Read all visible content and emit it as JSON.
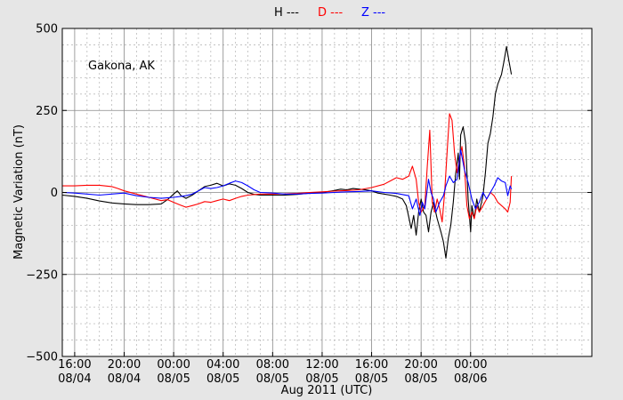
{
  "chart_data": {
    "type": "line",
    "legend": [
      {
        "name": "H ---",
        "color": "#000000"
      },
      {
        "name": "D ---",
        "color": "#ff0000"
      },
      {
        "name": "Z ---",
        "color": "#0000ff"
      }
    ],
    "legend_placement": "top-center",
    "annotation": "Gakona, AK",
    "xlabel": "Aug 2011 (UTC)",
    "ylabel": "Magnetic Variation (nT)",
    "x_unit": "hours since 2011-08-04 00:00 UTC",
    "xlim": [
      15,
      57.8
    ],
    "ylim": [
      -500,
      500
    ],
    "grid": true,
    "x_ticks": [
      {
        "x": 16,
        "line1": "16:00",
        "line2": "08/04"
      },
      {
        "x": 20,
        "line1": "20:00",
        "line2": "08/04"
      },
      {
        "x": 24,
        "line1": "00:00",
        "line2": "08/05"
      },
      {
        "x": 28,
        "line1": "04:00",
        "line2": "08/05"
      },
      {
        "x": 32,
        "line1": "08:00",
        "line2": "08/05"
      },
      {
        "x": 36,
        "line1": "12:00",
        "line2": "08/05"
      },
      {
        "x": 40,
        "line1": "16:00",
        "line2": "08/05"
      },
      {
        "x": 44,
        "line1": "20:00",
        "line2": "08/05"
      },
      {
        "x": 48,
        "line1": "00:00",
        "line2": "08/06"
      }
    ],
    "y_ticks": [
      {
        "y": 500,
        "label": "500"
      },
      {
        "y": 250,
        "label": "250"
      },
      {
        "y": 0,
        "label": "0"
      },
      {
        "y": -250,
        "label": "−250"
      },
      {
        "y": -500,
        "label": "−500"
      }
    ],
    "series": [
      {
        "name": "H",
        "color": "#000000",
        "points": [
          [
            15.0,
            -8
          ],
          [
            16.0,
            -12
          ],
          [
            17.0,
            -18
          ],
          [
            18.0,
            -26
          ],
          [
            19.0,
            -32
          ],
          [
            20.0,
            -35
          ],
          [
            21.0,
            -37
          ],
          [
            22.0,
            -37
          ],
          [
            23.0,
            -35
          ],
          [
            23.5,
            -22
          ],
          [
            24.0,
            -5
          ],
          [
            24.3,
            5
          ],
          [
            24.6,
            -10
          ],
          [
            25.0,
            -18
          ],
          [
            25.5,
            -8
          ],
          [
            26.0,
            5
          ],
          [
            26.5,
            18
          ],
          [
            27.0,
            22
          ],
          [
            27.5,
            28
          ],
          [
            28.0,
            20
          ],
          [
            28.5,
            26
          ],
          [
            29.0,
            22
          ],
          [
            29.5,
            12
          ],
          [
            30.0,
            0
          ],
          [
            30.5,
            -6
          ],
          [
            31.0,
            -8
          ],
          [
            32.0,
            -8
          ],
          [
            33.0,
            -8
          ],
          [
            34.0,
            -6
          ],
          [
            35.0,
            -2
          ],
          [
            36.0,
            0
          ],
          [
            36.5,
            3
          ],
          [
            37.0,
            6
          ],
          [
            37.5,
            10
          ],
          [
            38.0,
            8
          ],
          [
            38.5,
            12
          ],
          [
            39.0,
            10
          ],
          [
            39.5,
            8
          ],
          [
            40.0,
            5
          ],
          [
            40.5,
            -2
          ],
          [
            41.0,
            -5
          ],
          [
            41.5,
            -8
          ],
          [
            42.0,
            -12
          ],
          [
            42.5,
            -20
          ],
          [
            42.8,
            -40
          ],
          [
            43.0,
            -75
          ],
          [
            43.2,
            -110
          ],
          [
            43.4,
            -70
          ],
          [
            43.6,
            -130
          ],
          [
            43.8,
            -60
          ],
          [
            44.0,
            -20
          ],
          [
            44.2,
            -60
          ],
          [
            44.4,
            -70
          ],
          [
            44.6,
            -120
          ],
          [
            44.8,
            -60
          ],
          [
            45.0,
            -30
          ],
          [
            45.3,
            -80
          ],
          [
            45.6,
            -120
          ],
          [
            45.8,
            -150
          ],
          [
            46.0,
            -200
          ],
          [
            46.2,
            -140
          ],
          [
            46.4,
            -100
          ],
          [
            46.6,
            -30
          ],
          [
            46.8,
            60
          ],
          [
            47.0,
            120
          ],
          [
            47.1,
            40
          ],
          [
            47.2,
            175
          ],
          [
            47.4,
            200
          ],
          [
            47.6,
            150
          ],
          [
            47.8,
            -20
          ],
          [
            48.0,
            -120
          ],
          [
            48.1,
            -40
          ],
          [
            48.3,
            -80
          ],
          [
            48.5,
            -20
          ],
          [
            48.7,
            -60
          ],
          [
            49.0,
            -10
          ],
          [
            49.2,
            60
          ],
          [
            49.4,
            150
          ],
          [
            49.6,
            180
          ],
          [
            49.8,
            230
          ],
          [
            50.0,
            300
          ],
          [
            50.2,
            330
          ],
          [
            50.5,
            360
          ],
          [
            50.7,
            400
          ],
          [
            50.9,
            445
          ],
          [
            51.1,
            400
          ],
          [
            51.3,
            360
          ]
        ]
      },
      {
        "name": "D",
        "color": "#ff0000",
        "points": [
          [
            15.0,
            20
          ],
          [
            16.0,
            20
          ],
          [
            17.0,
            22
          ],
          [
            18.0,
            22
          ],
          [
            19.0,
            18
          ],
          [
            19.5,
            12
          ],
          [
            20.0,
            5
          ],
          [
            21.0,
            -5
          ],
          [
            22.0,
            -15
          ],
          [
            22.5,
            -20
          ],
          [
            23.0,
            -25
          ],
          [
            23.5,
            -22
          ],
          [
            24.0,
            -30
          ],
          [
            24.5,
            -38
          ],
          [
            25.0,
            -45
          ],
          [
            25.5,
            -40
          ],
          [
            26.0,
            -35
          ],
          [
            26.5,
            -28
          ],
          [
            27.0,
            -30
          ],
          [
            27.5,
            -25
          ],
          [
            28.0,
            -20
          ],
          [
            28.5,
            -25
          ],
          [
            29.0,
            -18
          ],
          [
            29.5,
            -12
          ],
          [
            30.0,
            -8
          ],
          [
            31.0,
            -5
          ],
          [
            32.0,
            -5
          ],
          [
            33.0,
            -4
          ],
          [
            34.0,
            -3
          ],
          [
            35.0,
            0
          ],
          [
            36.0,
            2
          ],
          [
            37.0,
            4
          ],
          [
            38.0,
            6
          ],
          [
            39.0,
            8
          ],
          [
            40.0,
            15
          ],
          [
            41.0,
            25
          ],
          [
            41.5,
            35
          ],
          [
            42.0,
            45
          ],
          [
            42.5,
            40
          ],
          [
            43.0,
            50
          ],
          [
            43.3,
            80
          ],
          [
            43.6,
            40
          ],
          [
            43.8,
            -30
          ],
          [
            44.0,
            -60
          ],
          [
            44.3,
            -40
          ],
          [
            44.5,
            80
          ],
          [
            44.7,
            190
          ],
          [
            44.9,
            -30
          ],
          [
            45.1,
            -60
          ],
          [
            45.3,
            -20
          ],
          [
            45.5,
            -50
          ],
          [
            45.7,
            -90
          ],
          [
            45.9,
            0
          ],
          [
            46.1,
            120
          ],
          [
            46.3,
            240
          ],
          [
            46.5,
            220
          ],
          [
            46.7,
            120
          ],
          [
            46.9,
            60
          ],
          [
            47.1,
            100
          ],
          [
            47.3,
            140
          ],
          [
            47.5,
            80
          ],
          [
            47.7,
            -40
          ],
          [
            47.9,
            -80
          ],
          [
            48.1,
            -60
          ],
          [
            48.3,
            -80
          ],
          [
            48.5,
            -40
          ],
          [
            48.7,
            -60
          ],
          [
            49.0,
            -40
          ],
          [
            49.3,
            -20
          ],
          [
            49.6,
            0
          ],
          [
            49.9,
            -10
          ],
          [
            50.2,
            -30
          ],
          [
            50.5,
            -40
          ],
          [
            50.8,
            -50
          ],
          [
            51.0,
            -60
          ],
          [
            51.2,
            -30
          ],
          [
            51.3,
            50
          ]
        ]
      },
      {
        "name": "Z",
        "color": "#0000ff",
        "points": [
          [
            15.0,
            0
          ],
          [
            16.0,
            -2
          ],
          [
            17.0,
            -5
          ],
          [
            18.0,
            -8
          ],
          [
            19.0,
            -5
          ],
          [
            20.0,
            -2
          ],
          [
            21.0,
            -10
          ],
          [
            22.0,
            -15
          ],
          [
            23.0,
            -18
          ],
          [
            24.0,
            -15
          ],
          [
            25.0,
            -10
          ],
          [
            25.5,
            -5
          ],
          [
            26.0,
            5
          ],
          [
            26.5,
            15
          ],
          [
            27.0,
            12
          ],
          [
            27.5,
            15
          ],
          [
            28.0,
            20
          ],
          [
            28.5,
            28
          ],
          [
            29.0,
            35
          ],
          [
            29.5,
            30
          ],
          [
            30.0,
            20
          ],
          [
            30.5,
            8
          ],
          [
            31.0,
            0
          ],
          [
            32.0,
            -2
          ],
          [
            33.0,
            -5
          ],
          [
            34.0,
            -5
          ],
          [
            35.0,
            -3
          ],
          [
            36.0,
            -2
          ],
          [
            37.0,
            0
          ],
          [
            38.0,
            2
          ],
          [
            39.0,
            3
          ],
          [
            40.0,
            5
          ],
          [
            41.0,
            0
          ],
          [
            42.0,
            -3
          ],
          [
            43.0,
            -10
          ],
          [
            43.3,
            -50
          ],
          [
            43.6,
            -20
          ],
          [
            43.9,
            -70
          ],
          [
            44.1,
            -30
          ],
          [
            44.3,
            -50
          ],
          [
            44.6,
            40
          ],
          [
            44.8,
            0
          ],
          [
            45.0,
            -20
          ],
          [
            45.2,
            -60
          ],
          [
            45.5,
            -30
          ],
          [
            45.8,
            -10
          ],
          [
            46.0,
            20
          ],
          [
            46.3,
            50
          ],
          [
            46.6,
            30
          ],
          [
            46.9,
            40
          ],
          [
            47.2,
            130
          ],
          [
            47.5,
            70
          ],
          [
            47.8,
            30
          ],
          [
            48.1,
            -20
          ],
          [
            48.4,
            -50
          ],
          [
            48.7,
            -30
          ],
          [
            49.0,
            0
          ],
          [
            49.3,
            -20
          ],
          [
            49.6,
            0
          ],
          [
            49.9,
            20
          ],
          [
            50.2,
            45
          ],
          [
            50.5,
            35
          ],
          [
            50.8,
            30
          ],
          [
            51.0,
            -10
          ],
          [
            51.2,
            20
          ],
          [
            51.3,
            10
          ]
        ]
      }
    ]
  }
}
